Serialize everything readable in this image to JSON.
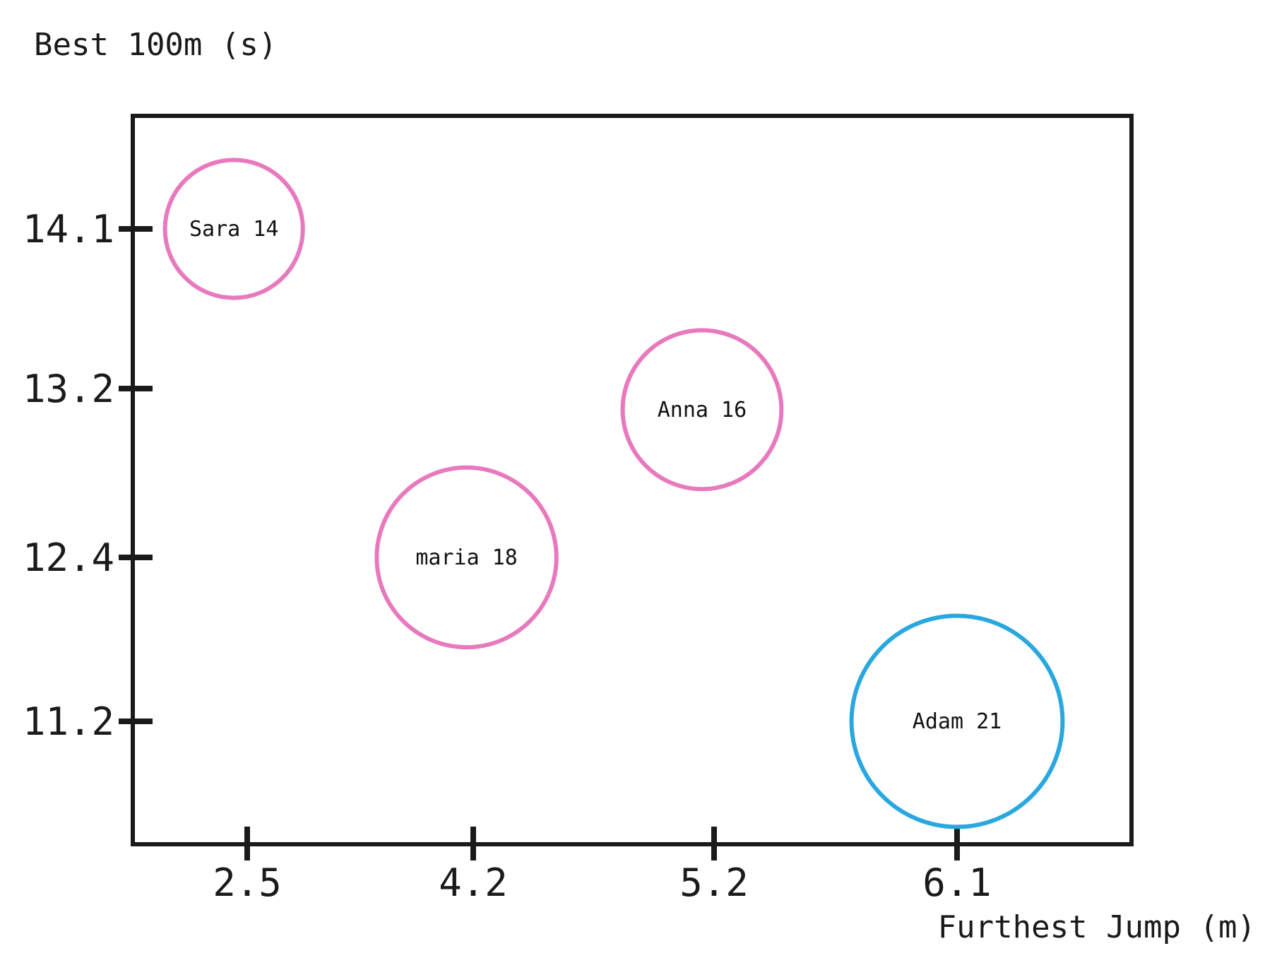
{
  "chart_data": {
    "type": "scatter",
    "title": "",
    "xlabel": "Furthest Jump (m)",
    "ylabel": "Best 100m (s)",
    "x_ticks": [
      2.5,
      4.2,
      5.2,
      6.1
    ],
    "y_ticks": [
      14.1,
      13.2,
      12.4,
      11.2
    ],
    "x_tick_labels": [
      "2.5",
      "4.2",
      "5.2",
      "6.1"
    ],
    "y_tick_labels": [
      "14.1",
      "13.2",
      "12.4",
      "11.2"
    ],
    "grid": false,
    "legend": "none",
    "points": [
      {
        "label": "Sara 14",
        "x": 2.4,
        "y": 14.1,
        "size": 14,
        "color": "#e879be"
      },
      {
        "label": "maria 18",
        "x": 4.15,
        "y": 12.4,
        "size": 18,
        "color": "#e879be"
      },
      {
        "label": "Anna 16",
        "x": 5.15,
        "y": 13.1,
        "size": 16,
        "color": "#e879be"
      },
      {
        "label": "Adam 21",
        "x": 6.1,
        "y": 11.2,
        "size": 21,
        "color": "#29a8e0"
      }
    ]
  }
}
